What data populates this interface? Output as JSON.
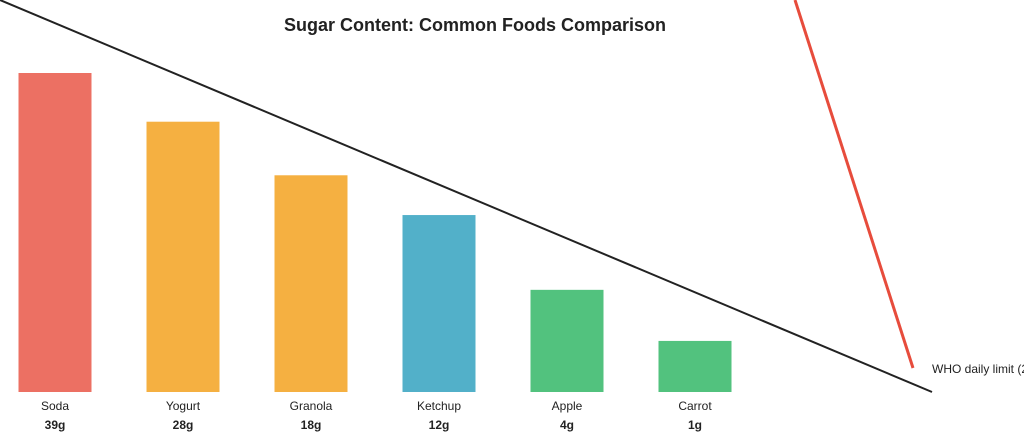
{
  "chart_data": {
    "type": "bar",
    "title": "Sugar Content: Common Foods Comparison",
    "categories": [
      "Soda",
      "Yogurt",
      "Granola",
      "Ketchup",
      "Apple",
      "Carrot"
    ],
    "values": [
      39,
      28,
      18,
      12,
      4,
      1
    ],
    "value_labels": [
      "39g",
      "28g",
      "18g",
      "12g",
      "4g",
      "1g"
    ],
    "colors": [
      "#ec7063",
      "#f5b041",
      "#f5b041",
      "#52b0c9",
      "#52c27e",
      "#52c27e"
    ],
    "y_scale": "sqrt",
    "ylim": [
      0,
      39
    ],
    "annotation": "WHO daily limit (2"
  }
}
